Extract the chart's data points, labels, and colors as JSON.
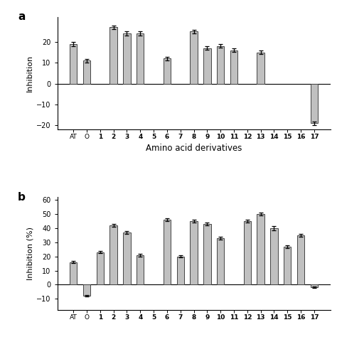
{
  "panel_a": {
    "categories": [
      "AT",
      "O",
      "1",
      "2",
      "3",
      "4",
      "5",
      "6",
      "7",
      "8",
      "9",
      "10",
      "11",
      "12",
      "13",
      "14",
      "15",
      "16",
      "17"
    ],
    "values": [
      19,
      11,
      null,
      27,
      24,
      24,
      null,
      12,
      null,
      25,
      17,
      18,
      16,
      null,
      15,
      null,
      null,
      null,
      -19
    ],
    "errors": [
      1.0,
      0.8,
      0,
      0.8,
      1.0,
      1.0,
      0,
      0.8,
      0,
      0.8,
      0.8,
      0.8,
      0.8,
      0,
      0.8,
      0,
      0,
      0,
      1.0
    ],
    "bar_color": "#c0c0c0",
    "ylabel": "Inhibition",
    "xlabel": "Amino acid derivatives",
    "ylim": [
      -22,
      32
    ],
    "yticks": [
      -20,
      -10,
      0,
      10,
      20
    ],
    "panel_label": "a"
  },
  "panel_b": {
    "categories": [
      "AT",
      "O",
      "1",
      "2",
      "3",
      "4",
      "5",
      "6",
      "7",
      "8",
      "9",
      "10",
      "11",
      "12",
      "13",
      "14",
      "15",
      "16",
      "17"
    ],
    "values": [
      16,
      -8,
      23,
      42,
      37,
      21,
      null,
      46,
      20,
      45,
      43,
      33,
      null,
      45,
      50,
      40,
      27,
      35,
      -2
    ],
    "errors": [
      0.8,
      0.5,
      0.8,
      1.0,
      1.0,
      1.0,
      0,
      1.0,
      0.8,
      1.0,
      1.0,
      1.0,
      0,
      1.0,
      1.0,
      1.5,
      1.0,
      1.0,
      0.5
    ],
    "bar_color": "#c0c0c0",
    "ylabel": "Inhibition (%)",
    "ylim": [
      -18,
      62
    ],
    "yticks": [
      -10,
      0,
      10,
      20,
      30,
      40,
      50,
      60
    ],
    "panel_label": "b"
  },
  "bar_width": 0.55,
  "edge_color": "#444444",
  "figure_bg": "#ffffff"
}
